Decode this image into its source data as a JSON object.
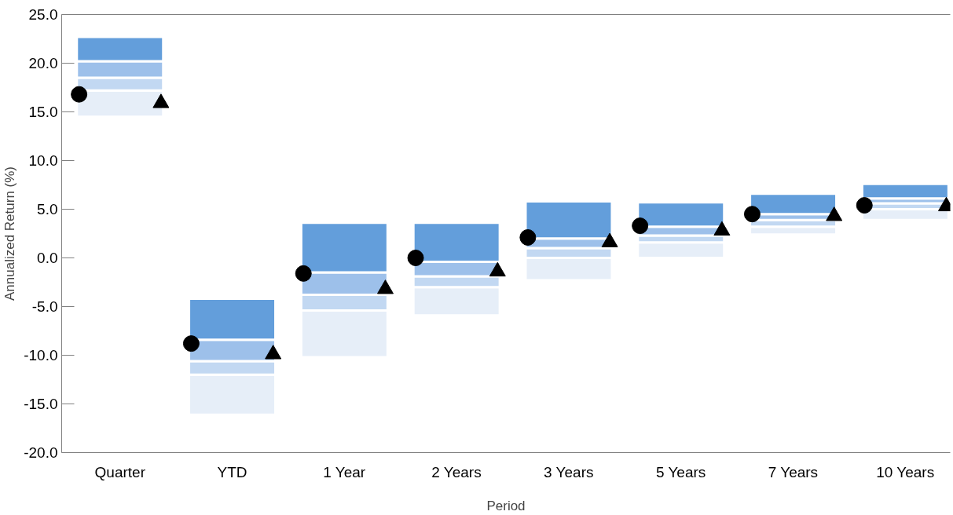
{
  "chart_data": {
    "type": "bar",
    "categories": [
      "Quarter",
      "YTD",
      "1 Year",
      "2 Years",
      "3 Years",
      "5 Years",
      "7 Years",
      "10 Years"
    ],
    "series": [
      {
        "color": "#e6eef8",
        "base": [
          14.5,
          -16.1,
          -10.2,
          -5.9,
          -2.3,
          0.0,
          2.4,
          3.9
        ],
        "values": [
          2.7,
          4.1,
          4.8,
          2.9,
          2.3,
          1.6,
          0.8,
          1.1
        ]
      },
      {
        "color": "#c2d8f2",
        "base": [
          17.2,
          -12.0,
          -5.4,
          -3.0,
          0.0,
          1.6,
          3.2,
          5.0
        ],
        "values": [
          1.3,
          1.4,
          1.6,
          1.1,
          1.0,
          0.7,
          0.7,
          0.6
        ]
      },
      {
        "color": "#9dc0ea",
        "base": [
          18.5,
          -10.6,
          -3.8,
          -1.9,
          1.0,
          2.3,
          3.9,
          5.6
        ],
        "values": [
          1.7,
          2.2,
          2.3,
          1.5,
          1.0,
          0.9,
          0.6,
          0.5
        ]
      },
      {
        "color": "#639edb",
        "base": [
          20.2,
          -8.4,
          -1.5,
          -0.4,
          2.0,
          3.2,
          4.5,
          6.1
        ],
        "values": [
          2.5,
          4.2,
          5.1,
          4.0,
          3.8,
          2.5,
          2.1,
          1.5
        ]
      },
      {
        "type": "scatter",
        "marker": "circle",
        "color": "#000000",
        "x": [
          "Quarter",
          "YTD",
          "1 Year",
          "2 Years",
          "3 Years",
          "5 Years",
          "7 Years",
          "10 Years"
        ],
        "values": [
          16.8,
          -8.8,
          -1.6,
          0.0,
          2.1,
          3.3,
          4.5,
          5.4
        ]
      },
      {
        "type": "scatter",
        "marker": "triangle",
        "color": "#000000",
        "x": [
          "Quarter",
          "YTD",
          "1 Year",
          "2 Years",
          "3 Years",
          "5 Years",
          "7 Years",
          "10 Years"
        ],
        "values": [
          15.9,
          -9.9,
          -3.2,
          -1.4,
          1.6,
          2.8,
          4.3,
          5.3
        ]
      }
    ],
    "ylim": [
      -20,
      25
    ],
    "yticks": [
      {
        "value": -20,
        "label": "-20.0"
      },
      {
        "value": -15,
        "label": "-15.0"
      },
      {
        "value": -10,
        "label": "-10.0"
      },
      {
        "value": -5,
        "label": "-5.0"
      },
      {
        "value": 0,
        "label": "0.0"
      },
      {
        "value": 5,
        "label": "5.0"
      },
      {
        "value": 10,
        "label": "10.0"
      },
      {
        "value": 15,
        "label": "15.0"
      },
      {
        "value": 20,
        "label": "20.0"
      },
      {
        "value": 25,
        "label": "25.0"
      }
    ],
    "xlabel": "Period",
    "ylabel": "Annualized Return (%)",
    "grid": false
  }
}
